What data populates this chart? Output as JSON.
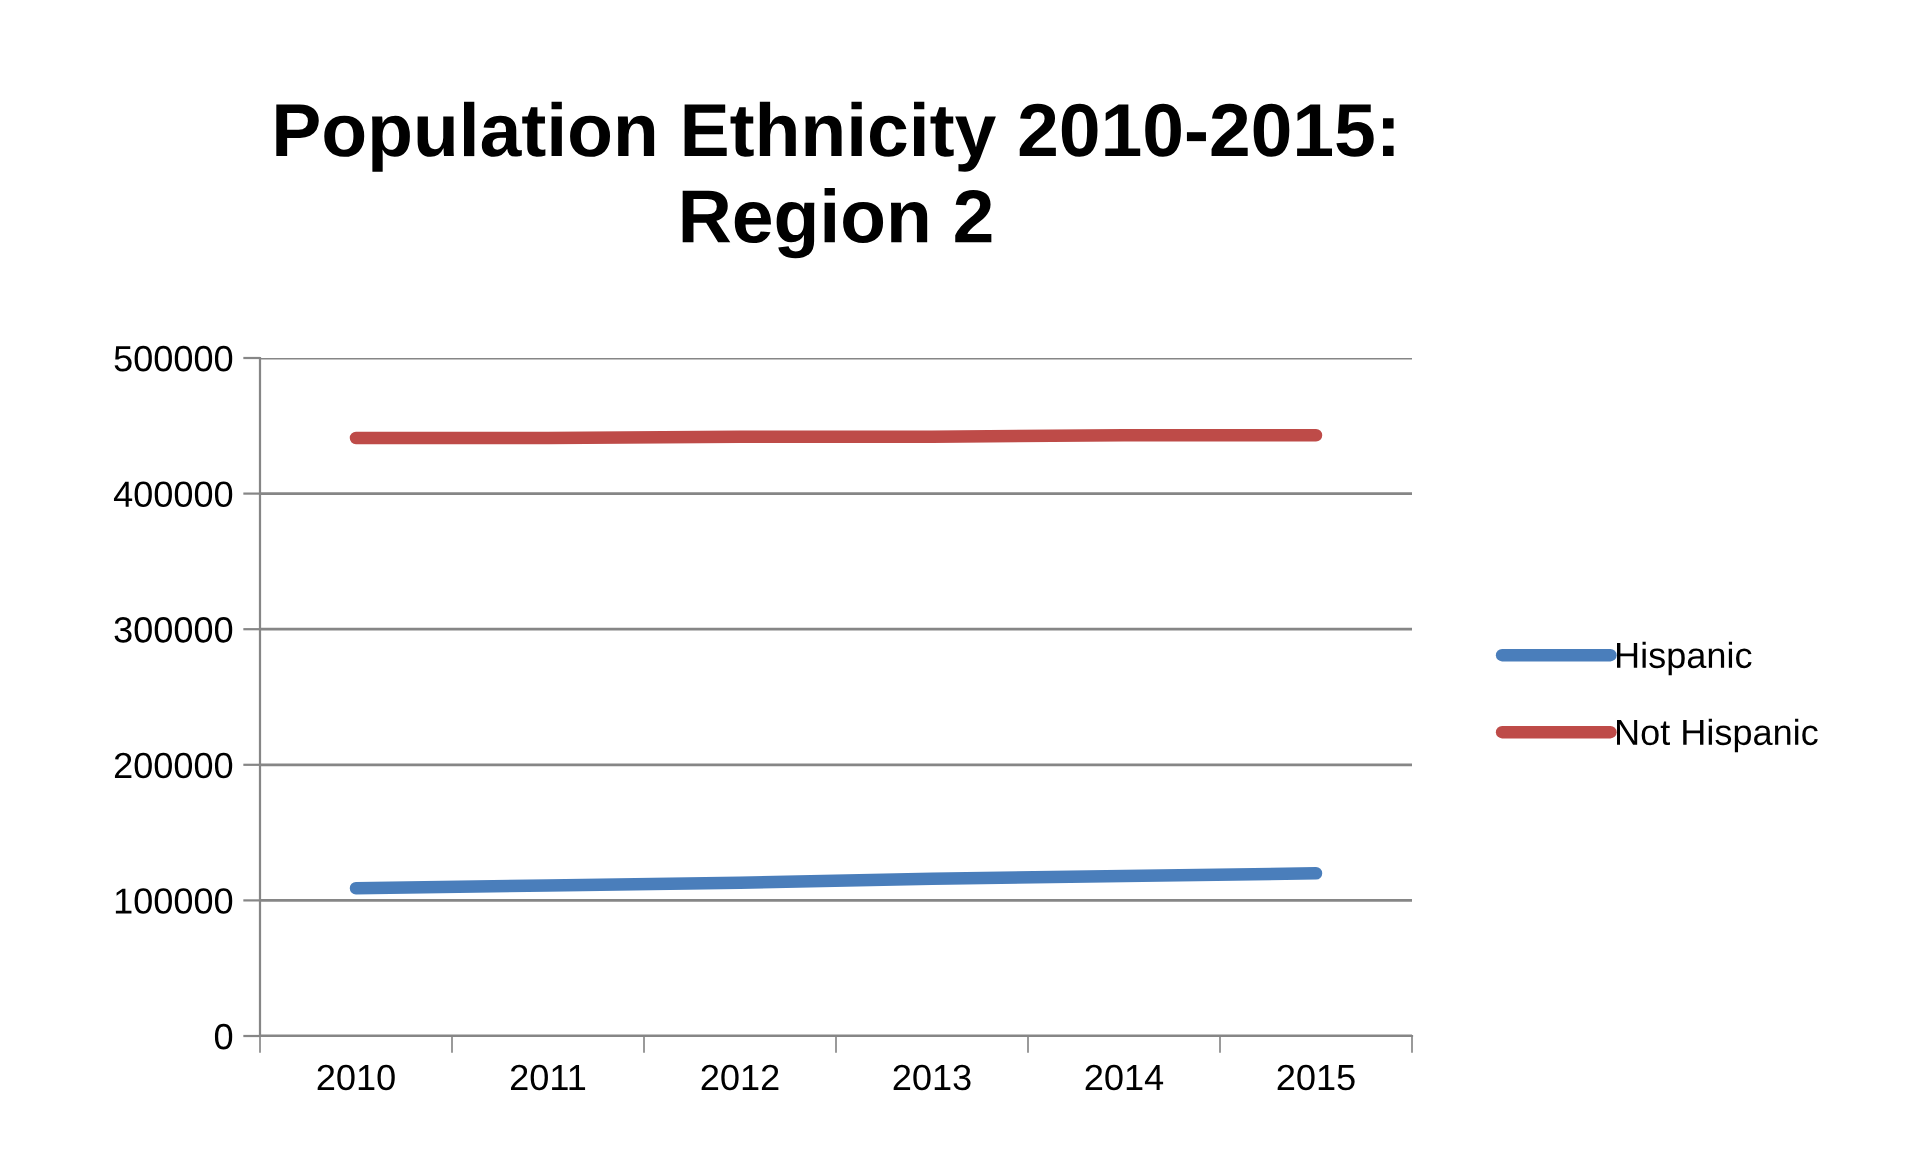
{
  "chart_data": {
    "type": "line",
    "title": "Population Ethnicity 2010-2015:\nRegion 2",
    "categories": [
      "2010",
      "2011",
      "2012",
      "2013",
      "2014",
      "2015"
    ],
    "series": [
      {
        "name": "Hispanic",
        "color": "#4a7ebb",
        "values": [
          109000,
          111000,
          113000,
          116000,
          118000,
          120000
        ]
      },
      {
        "name": "Not Hispanic",
        "color": "#be4b48",
        "values": [
          441000,
          441000,
          442000,
          442000,
          443000,
          443000
        ]
      }
    ],
    "ylim": [
      0,
      500000
    ],
    "yticks": [
      0,
      100000,
      200000,
      300000,
      400000,
      500000
    ],
    "grid": "y",
    "legend": "right",
    "marker": "none",
    "line_style": "solid"
  }
}
